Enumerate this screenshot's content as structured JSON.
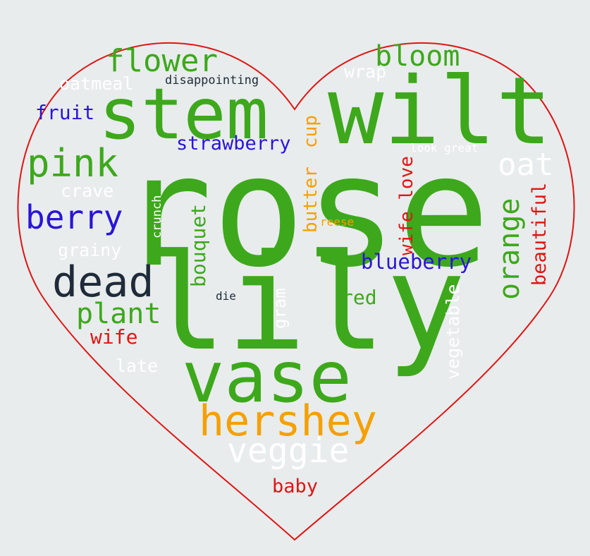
{
  "colors": {
    "green": "#3da81c",
    "red": "#e01515",
    "blue": "#2a14d8",
    "orange": "#f5a000",
    "white": "#ffffff",
    "dark": "#1f2b3a",
    "background": "#e8ecec",
    "heart_outline": "#e01515"
  },
  "words": {
    "rose": "rose",
    "lily": "lily",
    "wilt": "wilt",
    "stem": "stem",
    "vase": "vase",
    "hershey": "hershey",
    "veggie": "veggie",
    "flower": "flower",
    "bloom": "bloom",
    "pink": "pink",
    "berry": "berry",
    "dead": "dead",
    "plant": "plant",
    "oat": "oat",
    "orange": "orange",
    "strawberry": "strawberry",
    "blueberry": "blueberry",
    "fruit": "fruit",
    "oatmeal": "oatmeal",
    "disappointing": "disappointing",
    "wrap": "wrap",
    "crave": "crave",
    "grainy": "grainy",
    "crunch": "crunch",
    "bouquet": "bouquet",
    "butter": "butter",
    "cup": "cup",
    "reese": "reese",
    "wife_love": "wife love",
    "look_great": "look great",
    "beautiful": "beautiful",
    "vegetable": "vegetable",
    "gram": "gram",
    "die": "die",
    "red": "red",
    "wife": "wife",
    "late": "late",
    "baby": "baby"
  }
}
